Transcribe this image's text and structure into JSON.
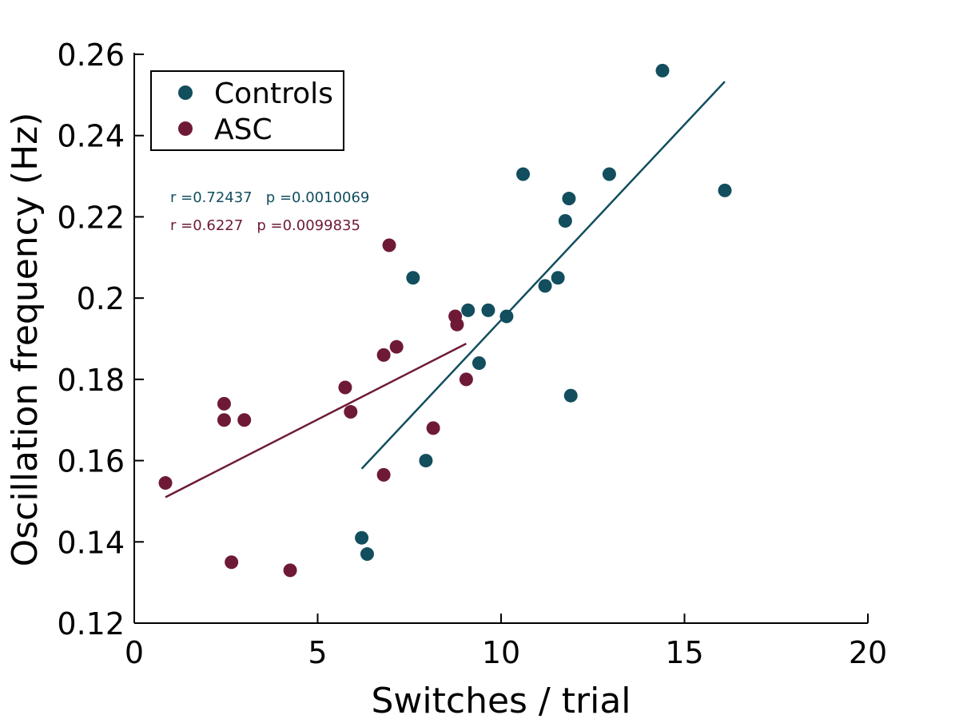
{
  "chart_data": {
    "type": "scatter",
    "xlabel": "Switches / trial",
    "ylabel": "Oscillation frequency (Hz)",
    "xlim": [
      0,
      20
    ],
    "ylim": [
      0.12,
      0.26
    ],
    "x_ticks": [
      "0",
      "5",
      "10",
      "15",
      "20"
    ],
    "y_ticks": [
      "0.12",
      "0.14",
      "0.16",
      "0.18",
      "0.2",
      "0.22",
      "0.24",
      "0.26"
    ],
    "grid": false,
    "legend_position": "top-left",
    "series": [
      {
        "name": "Controls",
        "color": "#124e5e",
        "points": [
          [
            6.2,
            0.141
          ],
          [
            6.35,
            0.137
          ],
          [
            7.6,
            0.205
          ],
          [
            7.95,
            0.16
          ],
          [
            9.1,
            0.197
          ],
          [
            9.4,
            0.184
          ],
          [
            9.65,
            0.197
          ],
          [
            10.15,
            0.1955
          ],
          [
            10.6,
            0.2305
          ],
          [
            11.2,
            0.203
          ],
          [
            11.55,
            0.205
          ],
          [
            11.75,
            0.219
          ],
          [
            11.85,
            0.2245
          ],
          [
            11.9,
            0.176
          ],
          [
            12.95,
            0.2305
          ],
          [
            14.4,
            0.256
          ],
          [
            16.1,
            0.2265
          ]
        ],
        "fit_line": [
          [
            6.2,
            0.158
          ],
          [
            16.1,
            0.2533
          ]
        ],
        "annotation": "r =0.72437   p =0.0010069"
      },
      {
        "name": "ASC",
        "color": "#6e1a37",
        "points": [
          [
            0.85,
            0.1545
          ],
          [
            2.45,
            0.174
          ],
          [
            2.45,
            0.17
          ],
          [
            2.65,
            0.135
          ],
          [
            3.0,
            0.17
          ],
          [
            4.25,
            0.133
          ],
          [
            5.75,
            0.178
          ],
          [
            5.9,
            0.172
          ],
          [
            6.8,
            0.186
          ],
          [
            6.8,
            0.1565
          ],
          [
            6.95,
            0.213
          ],
          [
            7.15,
            0.188
          ],
          [
            8.15,
            0.168
          ],
          [
            8.75,
            0.1955
          ],
          [
            8.8,
            0.1935
          ],
          [
            9.05,
            0.18
          ]
        ],
        "fit_line": [
          [
            0.85,
            0.151
          ],
          [
            9.05,
            0.1888
          ]
        ],
        "annotation": "r =0.6227   p =0.0099835"
      }
    ]
  }
}
